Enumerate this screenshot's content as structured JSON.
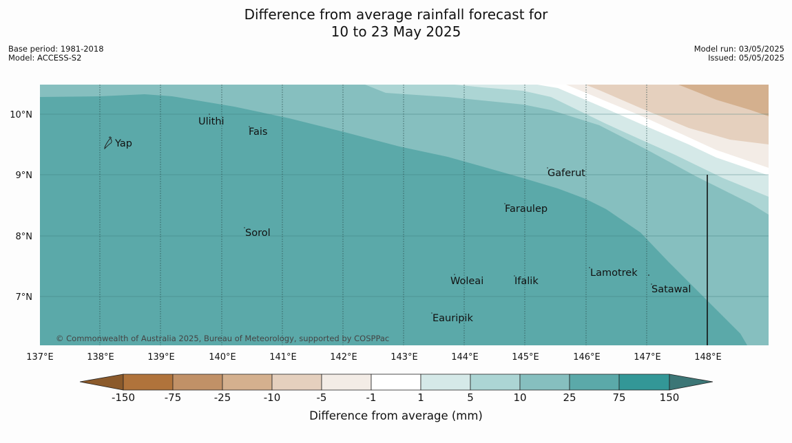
{
  "title_lines": [
    "Difference from average rainfall forecast for",
    "10 to 23 May 2025"
  ],
  "meta_left": [
    "Base period: 1981-2018",
    "Model: ACCESS-S2"
  ],
  "meta_right": [
    "Model run: 03/05/2025",
    "Issued: 05/05/2025"
  ],
  "map": {
    "lat_labels": [
      "10°N",
      "9°N",
      "8°N",
      "7°N"
    ],
    "lon_labels": [
      "137°E",
      "138°E",
      "139°E",
      "140°E",
      "141°E",
      "142°E",
      "143°E",
      "144°E",
      "145°E",
      "146°E",
      "147°E",
      "148°E"
    ],
    "places": [
      "Ulithi",
      "Fais",
      "Yap",
      "Gaferut",
      "Faraulep",
      "Sorol",
      "Lamotrek",
      "Satawal",
      "Woleai",
      "Ifalik",
      "Eauripik"
    ],
    "copyright": "© Commonwealth of Australia 2025, Bureau of Meteorology, supported by COSPPac"
  },
  "legend": {
    "tick_labels": [
      "-150",
      "-75",
      "-25",
      "-10",
      "-5",
      "-1",
      "1",
      "5",
      "10",
      "25",
      "75",
      "150"
    ],
    "colors": [
      "#8b5a2b",
      "#b0733b",
      "#c19167",
      "#d4b08e",
      "#e5d0be",
      "#f3ece6",
      "#ffffff",
      "#d5e9e8",
      "#acd5d4",
      "#86bfbf",
      "#5ba9a9",
      "#339797",
      "#3c7676"
    ],
    "label": "Difference from average (mm)"
  }
}
